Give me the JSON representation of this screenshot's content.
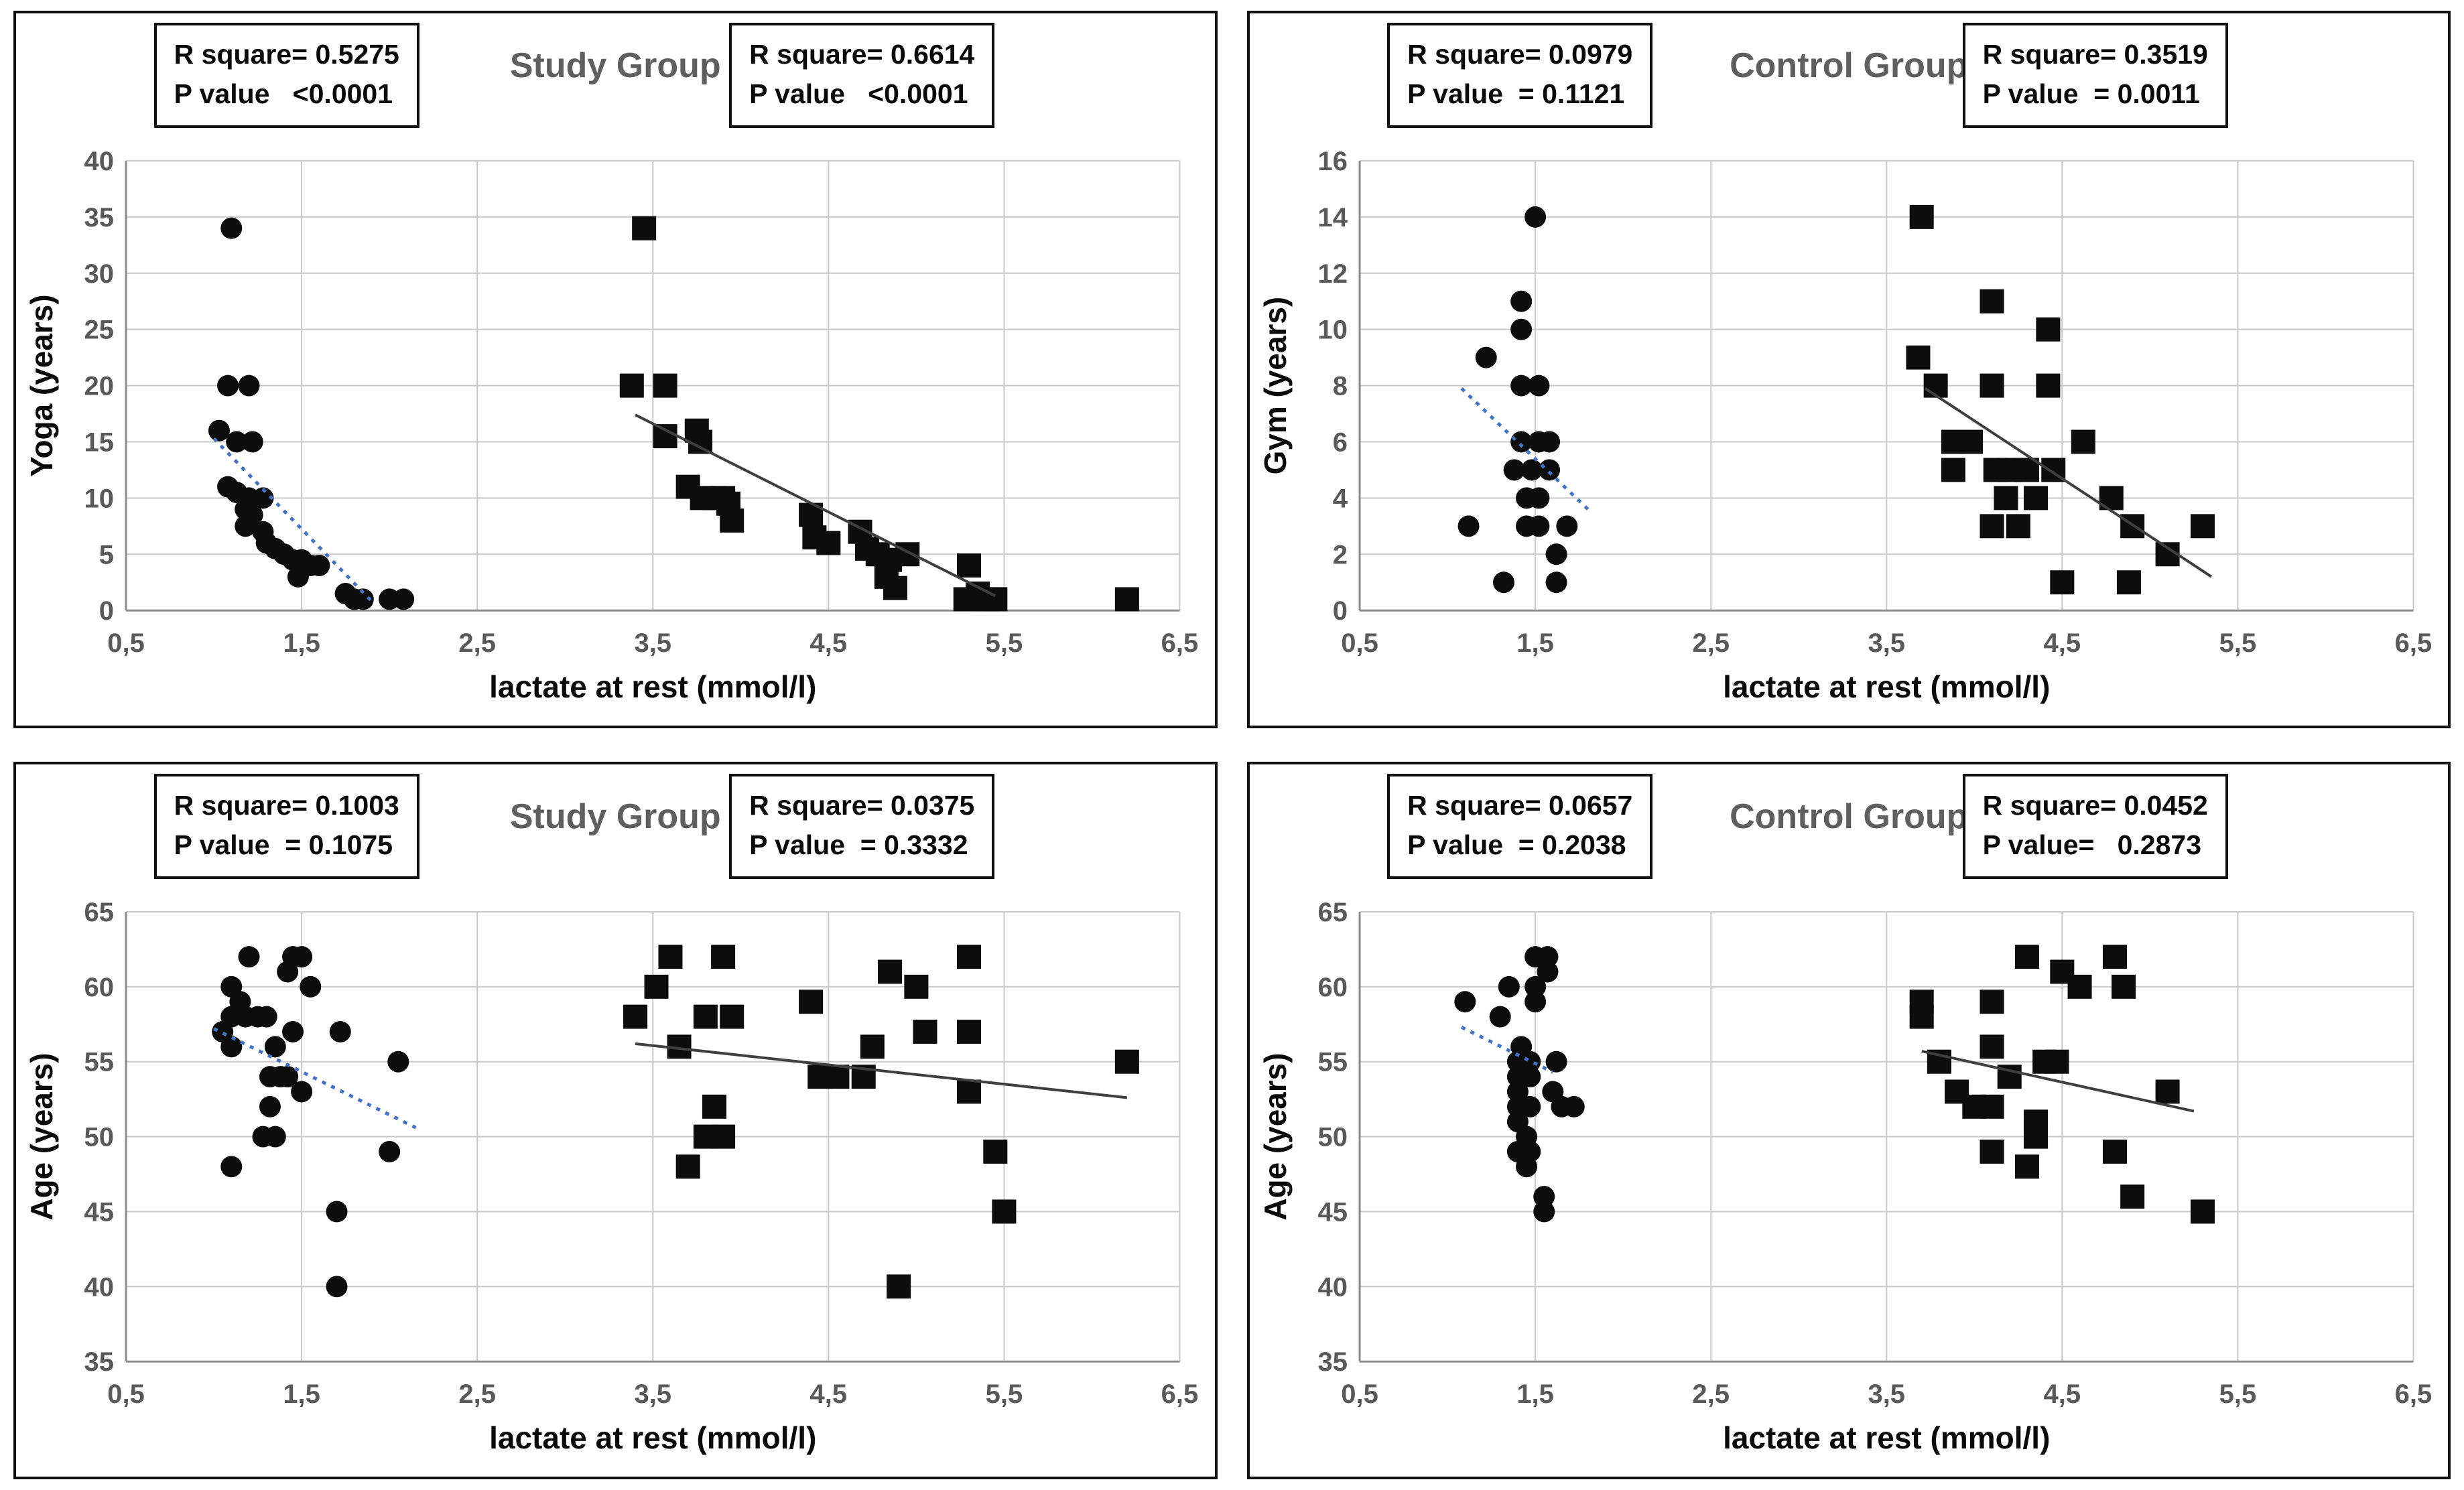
{
  "figure": {
    "description": "Four scatter plots comparing lactate at rest with training years and age in study and control groups"
  },
  "colors": {
    "marker": "#0d0d0d",
    "trend_dotted": "#4472c4",
    "trend_solid": "#3f3f3f",
    "gridline": "#c9c9c9",
    "axis_line": "#8c8c8c",
    "tick_label": "#595959",
    "axis_title": "#0a0a0a",
    "panel_title": "#5f5f5f"
  },
  "chart_data": [
    {
      "type": "scatter",
      "title": "Study Group",
      "xlabel": "lactate at rest (mmol/l)",
      "ylabel": "Yoga (years)",
      "xlim": [
        0.5,
        6.5
      ],
      "ylim": [
        0,
        40
      ],
      "ytick_step": 5,
      "ytick_labels": [
        "0",
        "5",
        "10",
        "15",
        "20",
        "25",
        "30",
        "35",
        "40"
      ],
      "xtick_labels": [
        "0,5",
        "1,5",
        "2,5",
        "3,5",
        "4,5",
        "5,5",
        "6,5"
      ],
      "grid": true,
      "annotations": {
        "left": "R square= 0.5275\nP value   <0.0001",
        "right": "R square= 0.6614\nP value   <0.0001"
      },
      "series": [
        {
          "name": "yoga-circles",
          "marker": "circle",
          "points": [
            [
              1.1,
              34
            ],
            [
              1.08,
              20
            ],
            [
              1.2,
              20
            ],
            [
              1.03,
              16
            ],
            [
              1.13,
              15
            ],
            [
              1.22,
              15
            ],
            [
              1.08,
              11
            ],
            [
              1.13,
              10.5
            ],
            [
              1.2,
              10
            ],
            [
              1.28,
              10
            ],
            [
              1.18,
              9
            ],
            [
              1.22,
              8.5
            ],
            [
              1.18,
              7.5
            ],
            [
              1.28,
              7
            ],
            [
              1.3,
              6
            ],
            [
              1.35,
              5.5
            ],
            [
              1.4,
              5
            ],
            [
              1.45,
              4.5
            ],
            [
              1.5,
              4.5
            ],
            [
              1.55,
              4
            ],
            [
              1.6,
              4
            ],
            [
              1.48,
              3
            ],
            [
              1.75,
              1.5
            ],
            [
              1.8,
              1
            ],
            [
              1.85,
              1
            ],
            [
              2.0,
              1
            ],
            [
              2.08,
              1
            ]
          ],
          "trend": {
            "style": "dotted",
            "from": [
              1.0,
              15.3
            ],
            "to": [
              1.9,
              0.8
            ]
          }
        },
        {
          "name": "yoga-squares",
          "marker": "square",
          "points": [
            [
              3.45,
              34
            ],
            [
              3.38,
              20
            ],
            [
              3.57,
              20
            ],
            [
              3.57,
              15.5
            ],
            [
              3.75,
              16
            ],
            [
              3.77,
              15
            ],
            [
              3.7,
              11
            ],
            [
              3.78,
              10
            ],
            [
              3.85,
              10
            ],
            [
              3.9,
              10
            ],
            [
              3.93,
              9.5
            ],
            [
              3.95,
              8
            ],
            [
              4.4,
              8.5
            ],
            [
              4.42,
              6.5
            ],
            [
              4.5,
              6
            ],
            [
              4.68,
              7
            ],
            [
              4.72,
              5.5
            ],
            [
              4.78,
              5
            ],
            [
              4.85,
              4.5
            ],
            [
              4.95,
              5
            ],
            [
              4.83,
              3
            ],
            [
              4.88,
              2
            ],
            [
              5.3,
              4
            ],
            [
              5.28,
              1
            ],
            [
              5.35,
              1.5
            ],
            [
              5.4,
              1
            ],
            [
              5.45,
              1
            ],
            [
              6.2,
              1
            ]
          ],
          "trend": {
            "style": "solid",
            "from": [
              3.4,
              17.4
            ],
            "to": [
              5.45,
              1.3
            ]
          }
        }
      ]
    },
    {
      "type": "scatter",
      "title": "Control Group",
      "xlabel": "lactate at rest (mmol/l)",
      "ylabel": "Gym (years)",
      "xlim": [
        0.5,
        6.5
      ],
      "ylim": [
        0,
        16
      ],
      "ytick_step": 2,
      "ytick_labels": [
        "0",
        "2",
        "4",
        "6",
        "8",
        "10",
        "12",
        "14",
        "16"
      ],
      "xtick_labels": [
        "0,5",
        "1,5",
        "2,5",
        "3,5",
        "4,5",
        "5,5",
        "6,5"
      ],
      "grid": true,
      "annotations": {
        "left": "R square= 0.0979\nP value  = 0.1121",
        "right": "R square= 0.3519\nP value  = 0.0011"
      },
      "series": [
        {
          "name": "gym-circles",
          "marker": "circle",
          "points": [
            [
              1.5,
              14
            ],
            [
              1.42,
              11
            ],
            [
              1.42,
              10
            ],
            [
              1.22,
              9
            ],
            [
              1.42,
              8
            ],
            [
              1.52,
              8
            ],
            [
              1.42,
              6
            ],
            [
              1.52,
              6
            ],
            [
              1.58,
              6
            ],
            [
              1.38,
              5
            ],
            [
              1.48,
              5
            ],
            [
              1.58,
              5
            ],
            [
              1.45,
              4
            ],
            [
              1.52,
              4
            ],
            [
              1.12,
              3
            ],
            [
              1.45,
              3
            ],
            [
              1.52,
              3
            ],
            [
              1.68,
              3
            ],
            [
              1.62,
              2
            ],
            [
              1.32,
              1
            ],
            [
              1.62,
              1
            ]
          ],
          "trend": {
            "style": "dotted",
            "from": [
              1.08,
              7.9
            ],
            "to": [
              1.8,
              3.6
            ]
          }
        },
        {
          "name": "gym-squares",
          "marker": "square",
          "points": [
            [
              3.7,
              14
            ],
            [
              4.1,
              11
            ],
            [
              4.42,
              10
            ],
            [
              3.68,
              9
            ],
            [
              3.78,
              8
            ],
            [
              4.1,
              8
            ],
            [
              4.42,
              8
            ],
            [
              3.88,
              6
            ],
            [
              3.98,
              6
            ],
            [
              4.62,
              6
            ],
            [
              3.88,
              5
            ],
            [
              4.12,
              5
            ],
            [
              4.2,
              5
            ],
            [
              4.3,
              5
            ],
            [
              4.45,
              5
            ],
            [
              4.18,
              4
            ],
            [
              4.35,
              4
            ],
            [
              4.78,
              4
            ],
            [
              4.1,
              3
            ],
            [
              4.25,
              3
            ],
            [
              4.9,
              3
            ],
            [
              5.3,
              3
            ],
            [
              5.1,
              2
            ],
            [
              4.5,
              1
            ],
            [
              4.88,
              1
            ]
          ],
          "trend": {
            "style": "solid",
            "from": [
              3.72,
              7.9
            ],
            "to": [
              5.35,
              1.2
            ]
          }
        }
      ]
    },
    {
      "type": "scatter",
      "title": "Study Group",
      "xlabel": "lactate at rest (mmol/l)",
      "ylabel": "Age (years)",
      "xlim": [
        0.5,
        6.5
      ],
      "ylim": [
        35,
        65
      ],
      "ytick_step": 5,
      "ytick_labels": [
        "35",
        "40",
        "45",
        "50",
        "55",
        "60",
        "65"
      ],
      "xtick_labels": [
        "0,5",
        "1,5",
        "2,5",
        "3,5",
        "4,5",
        "5,5",
        "6,5"
      ],
      "grid": true,
      "annotations": {
        "left": "R square= 0.1003\nP value  = 0.1075",
        "right": "R square= 0.0375\nP value  = 0.3332"
      },
      "series": [
        {
          "name": "age-study-circles",
          "marker": "circle",
          "points": [
            [
              1.2,
              62
            ],
            [
              1.45,
              62
            ],
            [
              1.5,
              62
            ],
            [
              1.42,
              61
            ],
            [
              1.1,
              60
            ],
            [
              1.55,
              60
            ],
            [
              1.15,
              59
            ],
            [
              1.1,
              58
            ],
            [
              1.18,
              58
            ],
            [
              1.25,
              58
            ],
            [
              1.3,
              58
            ],
            [
              1.05,
              57
            ],
            [
              1.45,
              57
            ],
            [
              1.72,
              57
            ],
            [
              1.1,
              56
            ],
            [
              1.35,
              56
            ],
            [
              2.05,
              55
            ],
            [
              1.32,
              54
            ],
            [
              1.38,
              54
            ],
            [
              1.42,
              54
            ],
            [
              1.5,
              53
            ],
            [
              1.32,
              52
            ],
            [
              1.28,
              50
            ],
            [
              1.35,
              50
            ],
            [
              1.1,
              48
            ],
            [
              2.0,
              49
            ],
            [
              1.7,
              45
            ],
            [
              1.7,
              40
            ]
          ],
          "trend": {
            "style": "dotted",
            "from": [
              1.0,
              57.2
            ],
            "to": [
              2.15,
              50.6
            ]
          }
        },
        {
          "name": "age-study-squares",
          "marker": "square",
          "points": [
            [
              3.6,
              62
            ],
            [
              3.9,
              62
            ],
            [
              4.85,
              61
            ],
            [
              5.3,
              62
            ],
            [
              3.52,
              60
            ],
            [
              5.0,
              60
            ],
            [
              4.4,
              59
            ],
            [
              3.4,
              58
            ],
            [
              3.8,
              58
            ],
            [
              3.95,
              58
            ],
            [
              3.65,
              56
            ],
            [
              4.75,
              56
            ],
            [
              5.05,
              57
            ],
            [
              5.3,
              57
            ],
            [
              4.45,
              54
            ],
            [
              4.55,
              54
            ],
            [
              4.7,
              54
            ],
            [
              5.3,
              53
            ],
            [
              3.85,
              52
            ],
            [
              3.8,
              50
            ],
            [
              3.9,
              50
            ],
            [
              3.7,
              48
            ],
            [
              5.45,
              49
            ],
            [
              5.5,
              45
            ],
            [
              6.2,
              55
            ],
            [
              4.9,
              40
            ]
          ],
          "trend": {
            "style": "solid",
            "from": [
              3.4,
              56.2
            ],
            "to": [
              6.2,
              52.6
            ]
          }
        }
      ]
    },
    {
      "type": "scatter",
      "title": "Control Group",
      "xlabel": "lactate at rest (mmol/l)",
      "ylabel": "Age (years)",
      "xlim": [
        0.5,
        6.5
      ],
      "ylim": [
        35,
        65
      ],
      "ytick_step": 5,
      "ytick_labels": [
        "35",
        "40",
        "45",
        "50",
        "55",
        "60",
        "65"
      ],
      "xtick_labels": [
        "0,5",
        "1,5",
        "2,5",
        "3,5",
        "4,5",
        "5,5",
        "6,5"
      ],
      "grid": true,
      "annotations": {
        "left": "R square= 0.0657\nP value  = 0.2038",
        "right": "R square= 0.0452\nP value=   0.2873"
      },
      "series": [
        {
          "name": "age-control-circles",
          "marker": "circle",
          "points": [
            [
              1.5,
              62
            ],
            [
              1.57,
              62
            ],
            [
              1.57,
              61
            ],
            [
              1.35,
              60
            ],
            [
              1.5,
              60
            ],
            [
              1.1,
              59
            ],
            [
              1.5,
              59
            ],
            [
              1.3,
              58
            ],
            [
              1.42,
              56
            ],
            [
              1.4,
              55
            ],
            [
              1.47,
              55
            ],
            [
              1.62,
              55
            ],
            [
              1.4,
              54
            ],
            [
              1.47,
              54
            ],
            [
              1.4,
              53
            ],
            [
              1.6,
              53
            ],
            [
              1.4,
              52
            ],
            [
              1.47,
              52
            ],
            [
              1.65,
              52
            ],
            [
              1.72,
              52
            ],
            [
              1.4,
              51
            ],
            [
              1.45,
              50
            ],
            [
              1.4,
              49
            ],
            [
              1.47,
              49
            ],
            [
              1.45,
              48
            ],
            [
              1.55,
              46
            ],
            [
              1.55,
              45
            ]
          ],
          "trend": {
            "style": "dotted",
            "from": [
              1.08,
              57.3
            ],
            "to": [
              1.6,
              54.3
            ]
          }
        },
        {
          "name": "age-control-squares",
          "marker": "square",
          "points": [
            [
              4.3,
              62
            ],
            [
              4.8,
              62
            ],
            [
              4.5,
              61
            ],
            [
              4.6,
              60
            ],
            [
              4.85,
              60
            ],
            [
              3.7,
              59
            ],
            [
              4.1,
              59
            ],
            [
              3.7,
              58
            ],
            [
              4.1,
              56
            ],
            [
              3.8,
              55
            ],
            [
              4.4,
              55
            ],
            [
              4.47,
              55
            ],
            [
              4.2,
              54
            ],
            [
              3.9,
              53
            ],
            [
              4.0,
              52
            ],
            [
              4.1,
              52
            ],
            [
              5.1,
              53
            ],
            [
              4.35,
              51
            ],
            [
              4.35,
              50
            ],
            [
              4.1,
              49
            ],
            [
              4.8,
              49
            ],
            [
              4.3,
              48
            ],
            [
              4.9,
              46
            ],
            [
              5.3,
              45
            ]
          ],
          "trend": {
            "style": "solid",
            "from": [
              3.7,
              55.7
            ],
            "to": [
              5.25,
              51.7
            ]
          }
        }
      ]
    }
  ]
}
